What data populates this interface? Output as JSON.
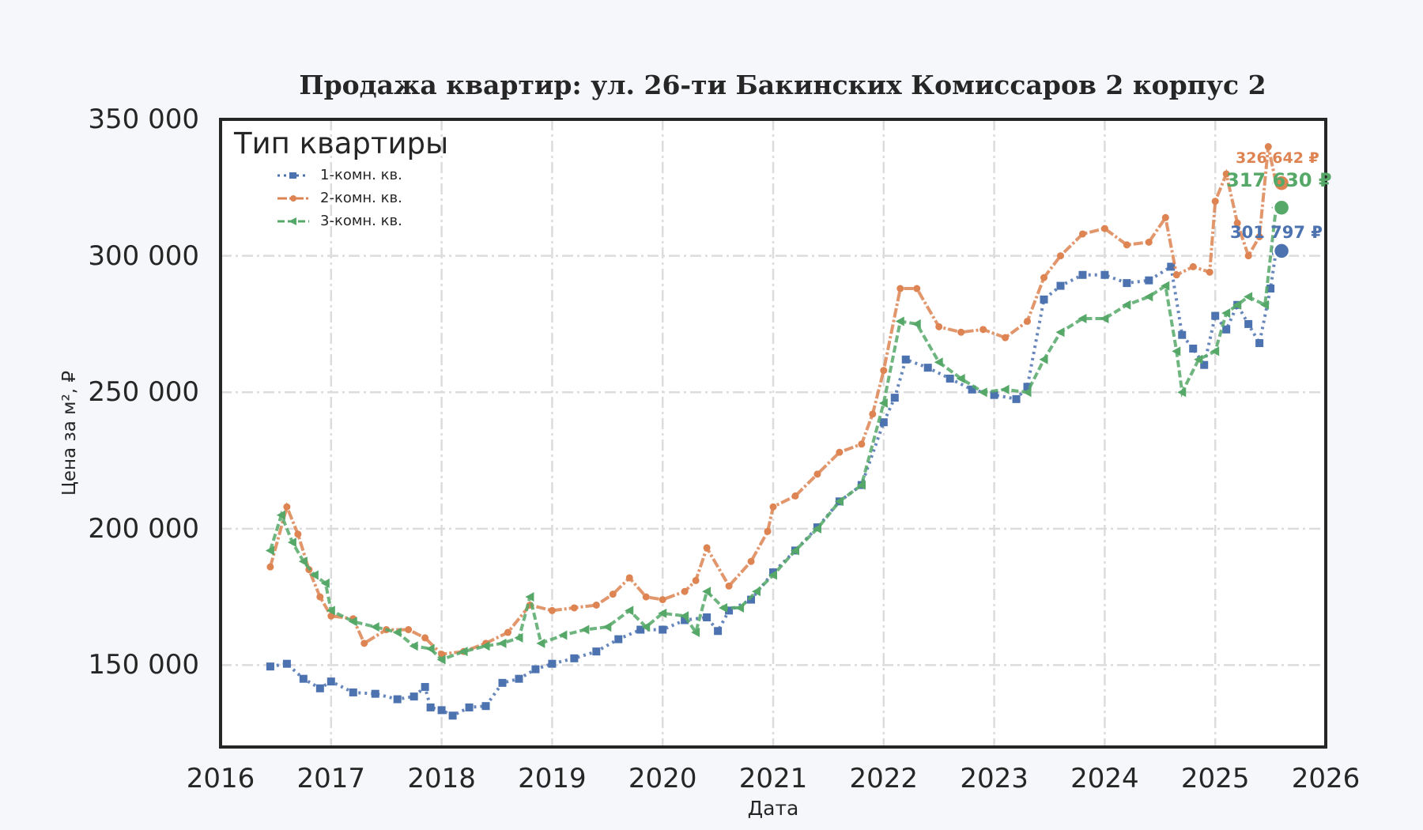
{
  "chart_data": {
    "type": "line",
    "title": "Продажа квартир: ул. 26-ти Бакинских Комиссаров 2 корпус 2",
    "xlabel": "Дата",
    "ylabel": "Цена за м², ₽",
    "xlim": [
      2016,
      2026
    ],
    "ylim": [
      120000,
      350000
    ],
    "x_ticks": [
      "2016",
      "2017",
      "2018",
      "2019",
      "2020",
      "2021",
      "2022",
      "2023",
      "2024",
      "2025",
      "2026"
    ],
    "y_ticks": [
      "150 000",
      "200 000",
      "250 000",
      "300 000",
      "350 000"
    ],
    "y_tick_values": [
      150000,
      200000,
      250000,
      300000,
      350000
    ],
    "grid": true,
    "legend": {
      "title": "Тип квартиры",
      "position": "upper left"
    },
    "series": [
      {
        "name": "1-комн. кв.",
        "color": "#4c72b0",
        "style": "dotted-square",
        "x": [
          2016.45,
          2016.6,
          2016.75,
          2016.9,
          2017.0,
          2017.2,
          2017.4,
          2017.6,
          2017.75,
          2017.85,
          2017.9,
          2018.0,
          2018.1,
          2018.25,
          2018.4,
          2018.55,
          2018.7,
          2018.85,
          2019.0,
          2019.2,
          2019.4,
          2019.6,
          2019.8,
          2020.0,
          2020.2,
          2020.4,
          2020.5,
          2020.6,
          2020.8,
          2021.0,
          2021.2,
          2021.4,
          2021.6,
          2021.8,
          2022.0,
          2022.1,
          2022.2,
          2022.4,
          2022.6,
          2022.8,
          2023.0,
          2023.2,
          2023.3,
          2023.45,
          2023.6,
          2023.8,
          2024.0,
          2024.2,
          2024.4,
          2024.6,
          2024.7,
          2024.8,
          2024.9,
          2025.0,
          2025.1,
          2025.2,
          2025.3,
          2025.4,
          2025.5,
          2025.55
        ],
        "y": [
          149500,
          150500,
          145000,
          141500,
          144000,
          140000,
          139500,
          137500,
          138500,
          142000,
          134500,
          133500,
          131500,
          134500,
          135000,
          143500,
          145000,
          148500,
          150500,
          152500,
          155000,
          159500,
          163000,
          163000,
          166500,
          167500,
          162500,
          170000,
          174000,
          184000,
          192000,
          200500,
          210000,
          216000,
          239000,
          248000,
          262000,
          259000,
          255000,
          251000,
          249000,
          247500,
          252000,
          284000,
          289000,
          293000,
          293000,
          290000,
          291000,
          296000,
          271000,
          266000,
          260000,
          278000,
          273000,
          282000,
          275000,
          268000,
          288000,
          301797
        ]
      },
      {
        "name": "2-комн. кв.",
        "color": "#dd8452",
        "style": "dashdot-plus",
        "x": [
          2016.45,
          2016.6,
          2016.7,
          2016.8,
          2016.9,
          2017.0,
          2017.2,
          2017.3,
          2017.5,
          2017.7,
          2017.85,
          2018.0,
          2018.2,
          2018.4,
          2018.6,
          2018.8,
          2019.0,
          2019.2,
          2019.4,
          2019.55,
          2019.7,
          2019.85,
          2020.0,
          2020.2,
          2020.3,
          2020.4,
          2020.6,
          2020.8,
          2020.95,
          2021.0,
          2021.2,
          2021.4,
          2021.6,
          2021.8,
          2021.9,
          2022.0,
          2022.15,
          2022.3,
          2022.5,
          2022.7,
          2022.9,
          2023.1,
          2023.3,
          2023.45,
          2023.6,
          2023.8,
          2024.0,
          2024.2,
          2024.4,
          2024.55,
          2024.65,
          2024.8,
          2024.95,
          2025.0,
          2025.1,
          2025.2,
          2025.3,
          2025.4,
          2025.48,
          2025.55
        ],
        "y": [
          186000,
          208000,
          198000,
          185000,
          175000,
          168000,
          167000,
          158000,
          163000,
          163000,
          160000,
          154000,
          155000,
          158000,
          162000,
          172000,
          170000,
          171000,
          172000,
          176000,
          182000,
          175000,
          174000,
          177000,
          181000,
          193000,
          179000,
          188000,
          199000,
          208000,
          212000,
          220000,
          228000,
          231000,
          242000,
          258000,
          288000,
          288000,
          274000,
          272000,
          273000,
          270000,
          276000,
          292000,
          300000,
          308000,
          310000,
          304000,
          305000,
          314000,
          293000,
          296000,
          294000,
          320000,
          330000,
          312000,
          300000,
          307000,
          340000,
          326642
        ]
      },
      {
        "name": "3-комн. кв.",
        "color": "#55a868",
        "style": "dashed-triangle",
        "x": [
          2016.45,
          2016.55,
          2016.65,
          2016.75,
          2016.85,
          2016.95,
          2017.0,
          2017.2,
          2017.4,
          2017.6,
          2017.75,
          2017.9,
          2018.0,
          2018.2,
          2018.4,
          2018.55,
          2018.7,
          2018.8,
          2018.9,
          2019.1,
          2019.3,
          2019.5,
          2019.7,
          2019.85,
          2020.0,
          2020.2,
          2020.3,
          2020.4,
          2020.55,
          2020.7,
          2020.85,
          2021.0,
          2021.2,
          2021.4,
          2021.6,
          2021.8,
          2022.0,
          2022.15,
          2022.3,
          2022.5,
          2022.7,
          2022.9,
          2023.1,
          2023.3,
          2023.45,
          2023.6,
          2023.8,
          2024.0,
          2024.2,
          2024.4,
          2024.55,
          2024.65,
          2024.7,
          2024.85,
          2025.0,
          2025.1,
          2025.2,
          2025.3,
          2025.45,
          2025.55
        ],
        "y": [
          192000,
          205000,
          195000,
          188000,
          183000,
          180000,
          170000,
          166000,
          164000,
          162000,
          157000,
          156000,
          152000,
          155000,
          157000,
          158000,
          160000,
          175000,
          158000,
          161000,
          163000,
          164000,
          170000,
          164000,
          169000,
          168000,
          162000,
          177000,
          171000,
          171000,
          177000,
          183000,
          192000,
          200000,
          210000,
          216000,
          246000,
          276000,
          275000,
          261000,
          255000,
          250000,
          251000,
          250000,
          262000,
          272000,
          277000,
          277000,
          282000,
          285000,
          289000,
          265000,
          250000,
          262000,
          265000,
          279000,
          282000,
          285000,
          282000,
          317630
        ]
      }
    ],
    "end_annotations": [
      {
        "series": "2-комн. кв.",
        "label": "326 642 ₽",
        "value": 326642
      },
      {
        "series": "3-комн. кв.",
        "label": "317 630 ₽",
        "value": 317630
      },
      {
        "series": "1-комн. кв.",
        "label": "301 797 ₽",
        "value": 301797
      }
    ]
  },
  "labels": {
    "title": "Продажа квартир: ул. 26-ти Бакинских Комиссаров 2 корпус 2",
    "xlabel": "Дата",
    "ylabel": "Цена за м², ₽",
    "legend_title": "Тип квартиры",
    "legend_items": [
      "1-комн. кв.",
      "2-комн. кв.",
      "3-комн. кв."
    ]
  }
}
